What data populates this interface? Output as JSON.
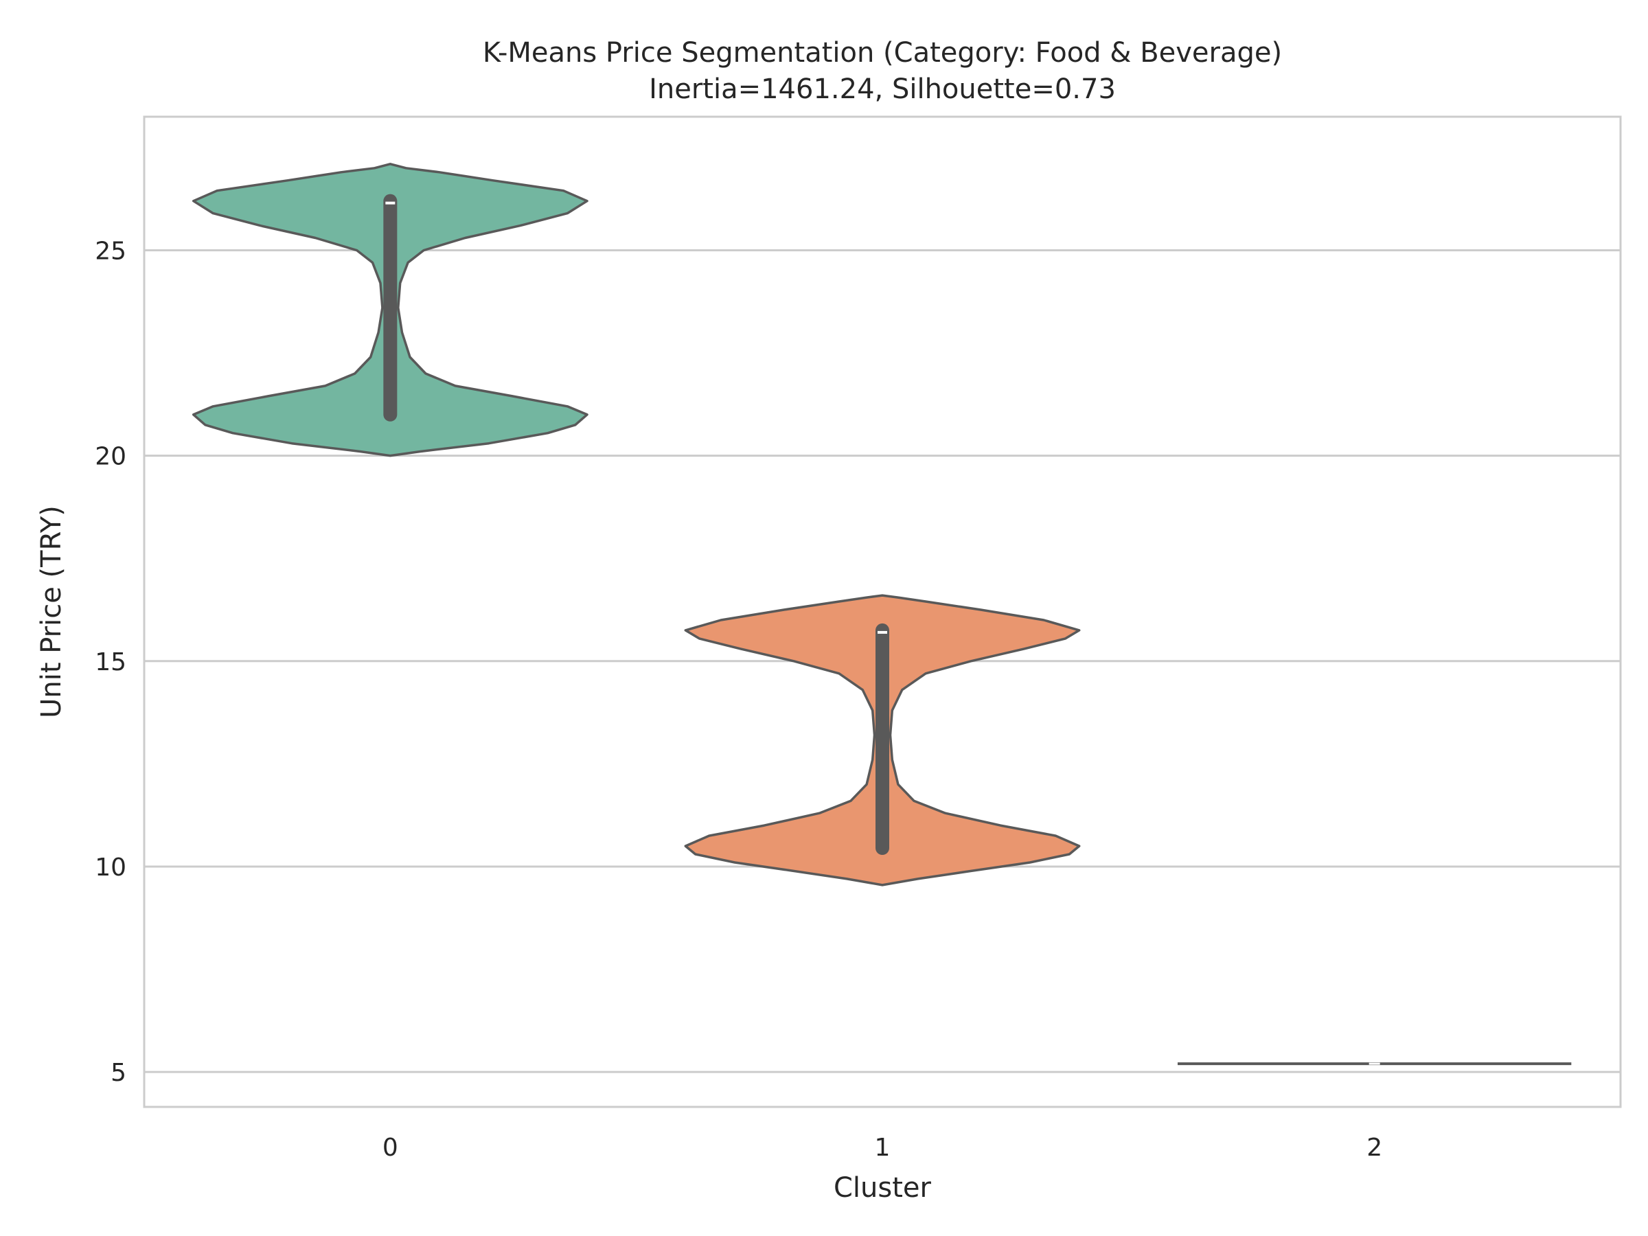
{
  "chart_data": {
    "type": "violin",
    "title": "K-Means Price Segmentation (Category: Food & Beverage)",
    "subtitle": "Inertia=1461.24, Silhouette=0.73",
    "xlabel": "Cluster",
    "ylabel": "Unit Price (TRY)",
    "categories": [
      "0",
      "1",
      "2"
    ],
    "y_ticks": [
      5,
      10,
      15,
      20,
      25
    ],
    "ylim": [
      4.15,
      28.25
    ],
    "grid": "horizontal",
    "colors": {
      "cluster_0": "#73b6a0",
      "cluster_1": "#e9966f",
      "cluster_2": "#f0a84e",
      "outline": "#595959",
      "inner": "#595959",
      "grid": "#cccccc",
      "frame": "#cccccc"
    },
    "violins": [
      {
        "cluster": "0",
        "min": 20.0,
        "max": 27.1,
        "modes": [
          21.0,
          26.2
        ],
        "q1": 21.0,
        "median": 26.15,
        "q3": 26.2,
        "whisker_low": 20.85,
        "whisker_high": 26.25,
        "density": [
          [
            20.0,
            0.0
          ],
          [
            20.1,
            0.15
          ],
          [
            20.3,
            0.5
          ],
          [
            20.55,
            0.8
          ],
          [
            20.75,
            0.94
          ],
          [
            21.0,
            1.0
          ],
          [
            21.2,
            0.9
          ],
          [
            21.45,
            0.62
          ],
          [
            21.7,
            0.33
          ],
          [
            22.0,
            0.18
          ],
          [
            22.4,
            0.1
          ],
          [
            23.0,
            0.06
          ],
          [
            23.6,
            0.04
          ],
          [
            24.2,
            0.05
          ],
          [
            24.7,
            0.09
          ],
          [
            25.0,
            0.17
          ],
          [
            25.3,
            0.38
          ],
          [
            25.6,
            0.66
          ],
          [
            25.9,
            0.9
          ],
          [
            26.2,
            1.0
          ],
          [
            26.45,
            0.88
          ],
          [
            26.7,
            0.52
          ],
          [
            26.9,
            0.25
          ],
          [
            27.0,
            0.08
          ],
          [
            27.1,
            0.0
          ]
        ]
      },
      {
        "cluster": "1",
        "min": 9.55,
        "max": 16.6,
        "modes": [
          10.5,
          15.7
        ],
        "q1": 10.45,
        "median": 15.7,
        "q3": 15.75,
        "whisker_low": 10.4,
        "whisker_high": 15.75,
        "density": [
          [
            9.55,
            0.0
          ],
          [
            9.7,
            0.18
          ],
          [
            9.9,
            0.46
          ],
          [
            10.1,
            0.75
          ],
          [
            10.3,
            0.95
          ],
          [
            10.5,
            1.0
          ],
          [
            10.75,
            0.88
          ],
          [
            11.0,
            0.6
          ],
          [
            11.3,
            0.32
          ],
          [
            11.6,
            0.16
          ],
          [
            12.0,
            0.08
          ],
          [
            12.6,
            0.05
          ],
          [
            13.2,
            0.04
          ],
          [
            13.8,
            0.05
          ],
          [
            14.3,
            0.1
          ],
          [
            14.7,
            0.22
          ],
          [
            15.0,
            0.45
          ],
          [
            15.3,
            0.72
          ],
          [
            15.55,
            0.93
          ],
          [
            15.75,
            1.0
          ],
          [
            16.0,
            0.82
          ],
          [
            16.25,
            0.5
          ],
          [
            16.45,
            0.22
          ],
          [
            16.55,
            0.08
          ],
          [
            16.6,
            0.0
          ]
        ]
      },
      {
        "cluster": "2",
        "min": 5.2,
        "max": 5.2,
        "modes": [
          5.2
        ],
        "q1": 5.2,
        "median": 5.2,
        "q3": 5.2,
        "whisker_low": 5.2,
        "whisker_high": 5.2,
        "density": []
      }
    ]
  }
}
